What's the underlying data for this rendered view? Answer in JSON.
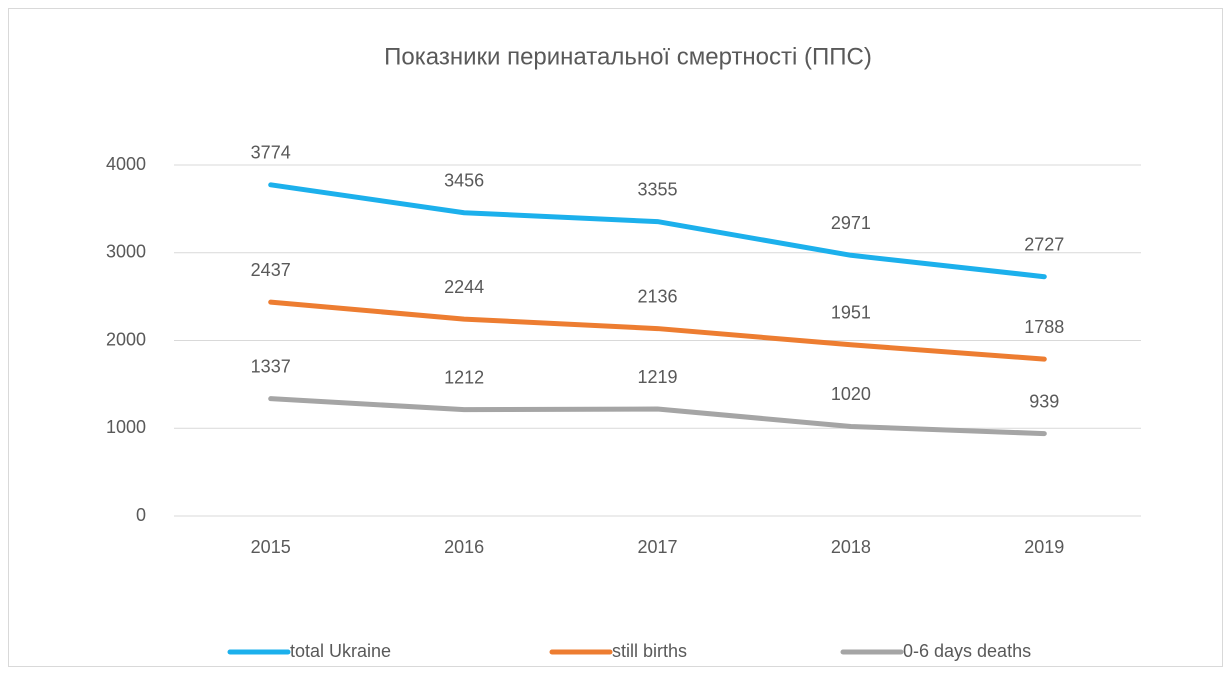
{
  "chart_data": {
    "type": "line",
    "title": "Показники перинатальної смертності (ППС)",
    "categories": [
      "2015",
      "2016",
      "2017",
      "2018",
      "2019"
    ],
    "series": [
      {
        "name": "total Ukraine",
        "color": "#1cb0ec",
        "values": [
          3774,
          3456,
          3355,
          2971,
          2727
        ]
      },
      {
        "name": "still births",
        "color": "#ed7d31",
        "values": [
          2437,
          2244,
          2136,
          1951,
          1788
        ]
      },
      {
        "name": "0-6 days deaths",
        "color": "#a5a5a5",
        "values": [
          1337,
          1212,
          1219,
          1020,
          939
        ]
      }
    ],
    "ylim": [
      0,
      4000
    ],
    "yticks": [
      0,
      1000,
      2000,
      3000,
      4000
    ],
    "grid": true,
    "legend": "bottom"
  }
}
